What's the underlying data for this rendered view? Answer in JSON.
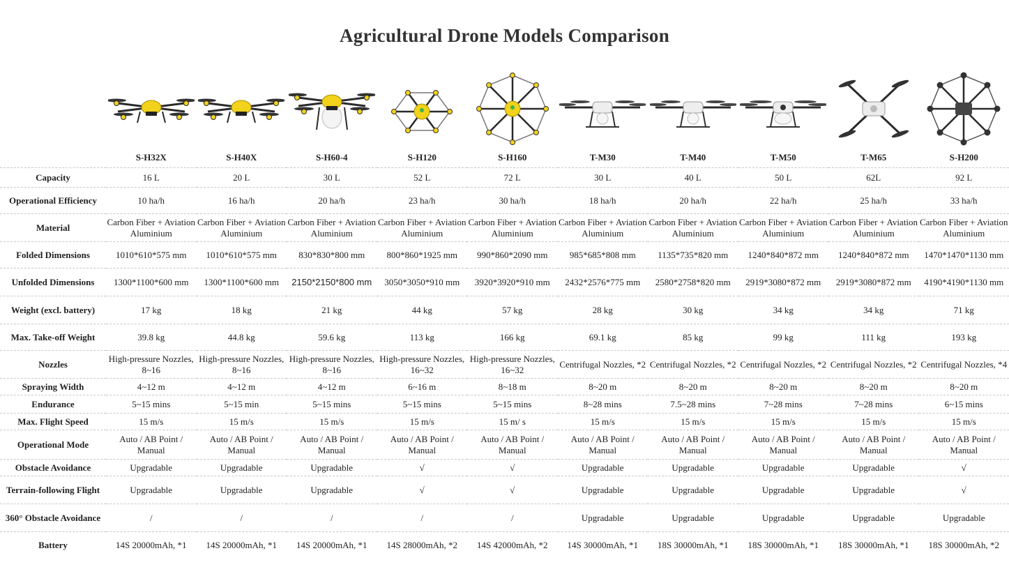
{
  "title": "Agricultural Drone Models Comparison",
  "colors": {
    "yellow": "#f2d21b",
    "arm": "#2a2a2a",
    "grey": "#9a9a9a"
  },
  "models": [
    {
      "name": "S-H32X",
      "icon": "quad-yellow-drone-icon",
      "type": "quad-yellow"
    },
    {
      "name": "S-H40X",
      "icon": "quad-yellow-drone-icon",
      "type": "quad-yellow"
    },
    {
      "name": "S-H60-4",
      "icon": "quad-yellow-drone-icon",
      "type": "quad-yellow-tall"
    },
    {
      "name": "S-H120",
      "icon": "hex-yellow-drone-icon",
      "type": "hex-ring"
    },
    {
      "name": "S-H160",
      "icon": "octo-yellow-drone-icon",
      "type": "octo-ring"
    },
    {
      "name": "T-M30",
      "icon": "quad-white-drone-icon",
      "type": "quad-white"
    },
    {
      "name": "T-M40",
      "icon": "quad-white-drone-icon",
      "type": "quad-white"
    },
    {
      "name": "T-M50",
      "icon": "quad-white-drone-icon",
      "type": "quad-white-large"
    },
    {
      "name": "T-M65",
      "icon": "x-quad-white-drone-icon",
      "type": "x-quad"
    },
    {
      "name": "S-H200",
      "icon": "octo-grey-drone-icon",
      "type": "octo-grey"
    }
  ],
  "rows": [
    {
      "label": "Capacity",
      "h": 28,
      "values": [
        "16 L",
        "20 L",
        "30 L",
        "52 L",
        "72 L",
        "30 L",
        "40 L",
        "50 L",
        "62L",
        "92 L"
      ]
    },
    {
      "label": "Operational Efficiency",
      "h": 38,
      "values": [
        "10 ha/h",
        "16 ha/h",
        "20 ha/h",
        "23 ha/h",
        "30 ha/h",
        "18 ha/h",
        "20 ha/h",
        "22 ha/h",
        "25 ha/h",
        "33 ha/h"
      ]
    },
    {
      "label": "Material",
      "h": 40,
      "values": [
        "Carbon Fiber + Aviation Aluminium",
        "Carbon Fiber + Aviation Aluminium",
        "Carbon Fiber + Aviation Aluminium",
        "Carbon Fiber + Aviation Aluminium",
        "Carbon Fiber + Aviation Aluminium",
        "Carbon Fiber + Aviation Aluminium",
        "Carbon Fiber + Aviation Aluminium",
        "Carbon Fiber + Aviation Aluminium",
        "Carbon Fiber + Aviation Aluminium",
        "Carbon Fiber + Aviation Aluminium"
      ]
    },
    {
      "label": "Folded Dimensions",
      "h": 38,
      "values": [
        "1010*610*575 mm",
        "1010*610*575 mm",
        "830*830*800 mm",
        "800*860*1925 mm",
        "990*860*2090 mm",
        "985*685*808 mm",
        "1135*735*820 mm",
        "1240*840*872 mm",
        "1240*840*872 mm",
        "1470*1470*1130 mm"
      ]
    },
    {
      "label": "Unfolded Dimensions",
      "h": 40,
      "values": [
        "1300*1100*600 mm",
        "1300*1100*600 mm",
        "2150*2150*800 mm",
        "3050*3050*910 mm",
        "3920*3920*910 mm",
        "2432*2576*775 mm",
        "2580*2758*820 mm",
        "2919*3080*872 mm",
        "2919*3080*872 mm",
        "4190*4190*1130 mm"
      ]
    },
    {
      "label": "Weight (excl. battery)",
      "h": 40,
      "values": [
        "17 kg",
        "18 kg",
        "21 kg",
        "44 kg",
        "57 kg",
        "28 kg",
        "30 kg",
        "34 kg",
        "34 kg",
        "71 kg"
      ]
    },
    {
      "label": "Max. Take-off Weight",
      "h": 38,
      "values": [
        "39.8 kg",
        "44.8 kg",
        "59.6 kg",
        "113 kg",
        "166 kg",
        "69.1 kg",
        "85 kg",
        "99 kg",
        "111 kg",
        "193 kg"
      ]
    },
    {
      "label": "Nozzles",
      "h": 40,
      "values": [
        "High-pressure Nozzles, 8~16",
        "High-pressure Nozzles, 8~16",
        "High-pressure Nozzles, 8~16",
        "High-pressure Nozzles, 16~32",
        "High-pressure Nozzles, 16~32",
        "Centrifugal Nozzles, *2",
        "Centrifugal Nozzles, *2",
        "Centrifugal Nozzles, *2",
        "Centrifugal Nozzles, *2",
        "Centrifugal Nozzles, *4"
      ]
    },
    {
      "label": "Spraying Width",
      "h": 24,
      "values": [
        "4~12 m",
        "4~12 m",
        "4~12 m",
        "6~16 m",
        "8~18 m",
        "8~20 m",
        "8~20 m",
        "8~20 m",
        "8~20 m",
        "8~20 m"
      ]
    },
    {
      "label": "Endurance",
      "h": 26,
      "values": [
        "5~15 mins",
        "5~15 min",
        "5~15 mins",
        "5~15 mins",
        "5~15 mins",
        "8~28 mins",
        "7.5~28 mins",
        "7~28 mins",
        "7~28 mins",
        "6~15 mins"
      ]
    },
    {
      "label": "Max. Flight Speed",
      "h": 24,
      "values": [
        "15 m/s",
        "15 m/s",
        "15 m/s",
        "15 m/s",
        "15 m/ s",
        "15 m/s",
        "15 m/s",
        "15 m/s",
        "15 m/s",
        "15 m/s"
      ]
    },
    {
      "label": "Operational Mode",
      "h": 42,
      "values": [
        "Auto / AB Point / Manual",
        "Auto / AB Point / Manual",
        "Auto / AB Point / Manual",
        "Auto / AB Point / Manual",
        "Auto / AB Point / Manual",
        "Auto / AB Point / Manual",
        "Auto / AB Point / Manual",
        "Auto / AB Point / Manual",
        "Auto / AB Point / Manual",
        "Auto / AB Point / Manual"
      ]
    },
    {
      "label": "Obstacle Avoidance",
      "h": 24,
      "values": [
        "Upgradable",
        "Upgradable",
        "Upgradable",
        "√",
        "√",
        "Upgradable",
        "Upgradable",
        "Upgradable",
        "Upgradable",
        "√"
      ]
    },
    {
      "label": "Terrain-following Flight",
      "h": 40,
      "values": [
        "Upgradable",
        "Upgradable",
        "Upgradable",
        "√",
        "√",
        "Upgradable",
        "Upgradable",
        "Upgradable",
        "Upgradable",
        "√"
      ]
    },
    {
      "label": "360° Obstacle Avoidance",
      "h": 40,
      "values": [
        "/",
        "/",
        "/",
        "/",
        "/",
        "Upgradable",
        "Upgradable",
        "Upgradable",
        "Upgradable",
        "Upgradable"
      ]
    },
    {
      "label": "Battery",
      "h": 38,
      "values": [
        "14S 20000mAh, *1",
        "14S 20000mAh, *1",
        "14S 20000mAh, *1",
        "14S 28000mAh, *2",
        "14S 42000mAh, *2",
        "14S 30000mAh, *1",
        "18S 30000mAh, *1",
        "18S 30000mAh, *1",
        "18S 30000mAh, *1",
        "18S 30000mAh, *2"
      ]
    }
  ]
}
